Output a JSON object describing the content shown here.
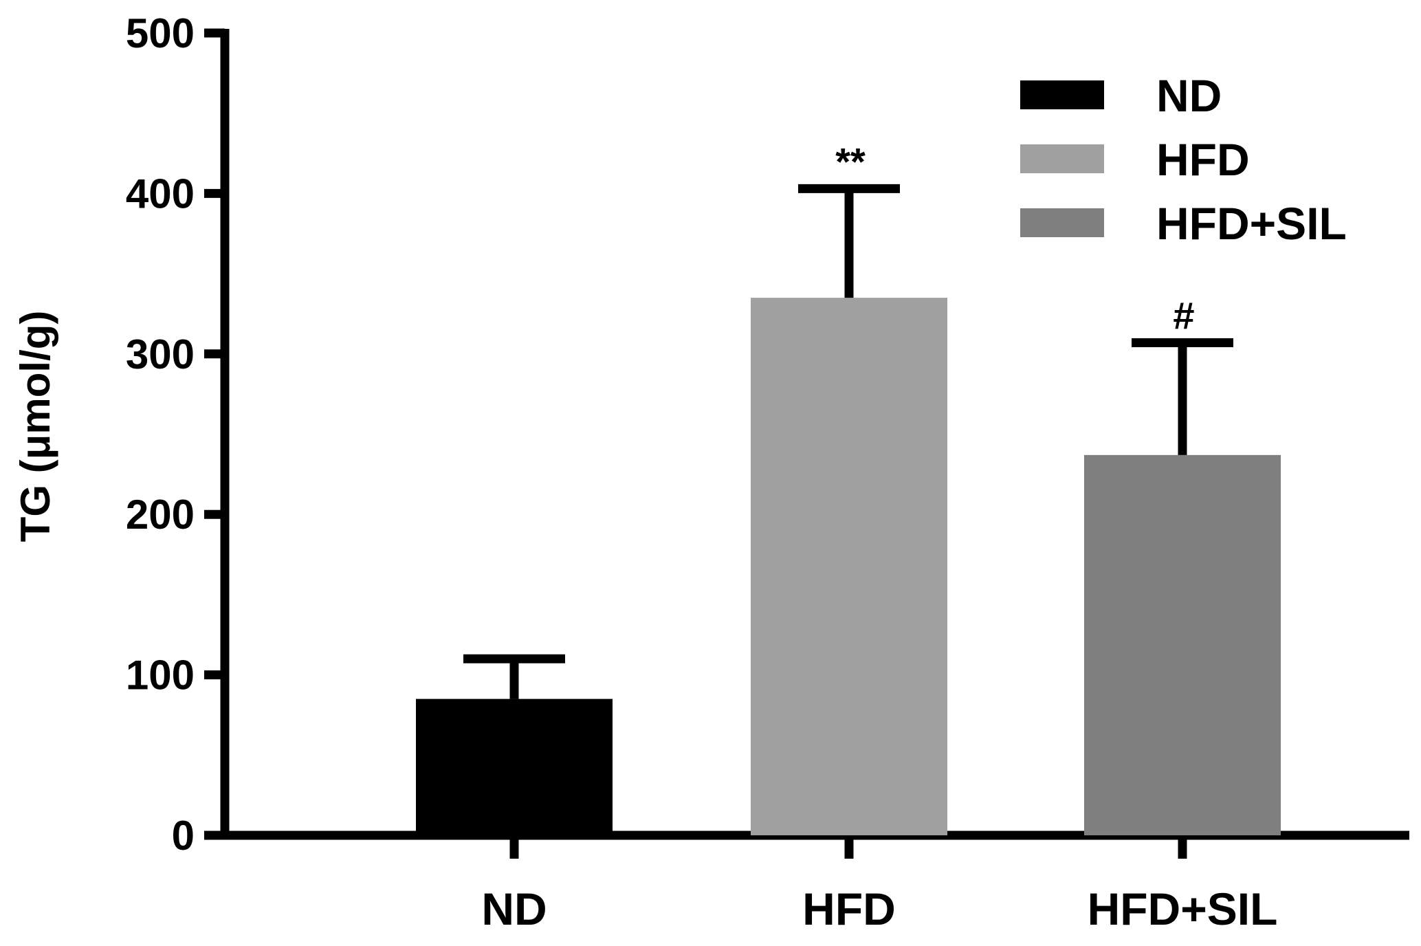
{
  "chart_data": {
    "type": "bar",
    "categories": [
      "ND",
      "HFD",
      "HFD+SIL"
    ],
    "values": [
      85,
      335,
      237
    ],
    "errors": [
      25,
      68,
      70
    ],
    "annotations": [
      "",
      "**",
      "#"
    ],
    "ylabel": "TG (μmol/g)",
    "xlabel": "",
    "ylim": [
      0,
      500
    ],
    "yticks": [
      "0",
      "100",
      "200",
      "300",
      "400",
      "500"
    ],
    "ytick_values": [
      0,
      100,
      200,
      300,
      400,
      500
    ],
    "grid": false,
    "legend": {
      "placement": "top-right",
      "entries": [
        "ND",
        "HFD",
        "HFD+SIL"
      ]
    },
    "colors": [
      "#000000",
      "#a0a0a0",
      "#7f7f7f"
    ]
  }
}
